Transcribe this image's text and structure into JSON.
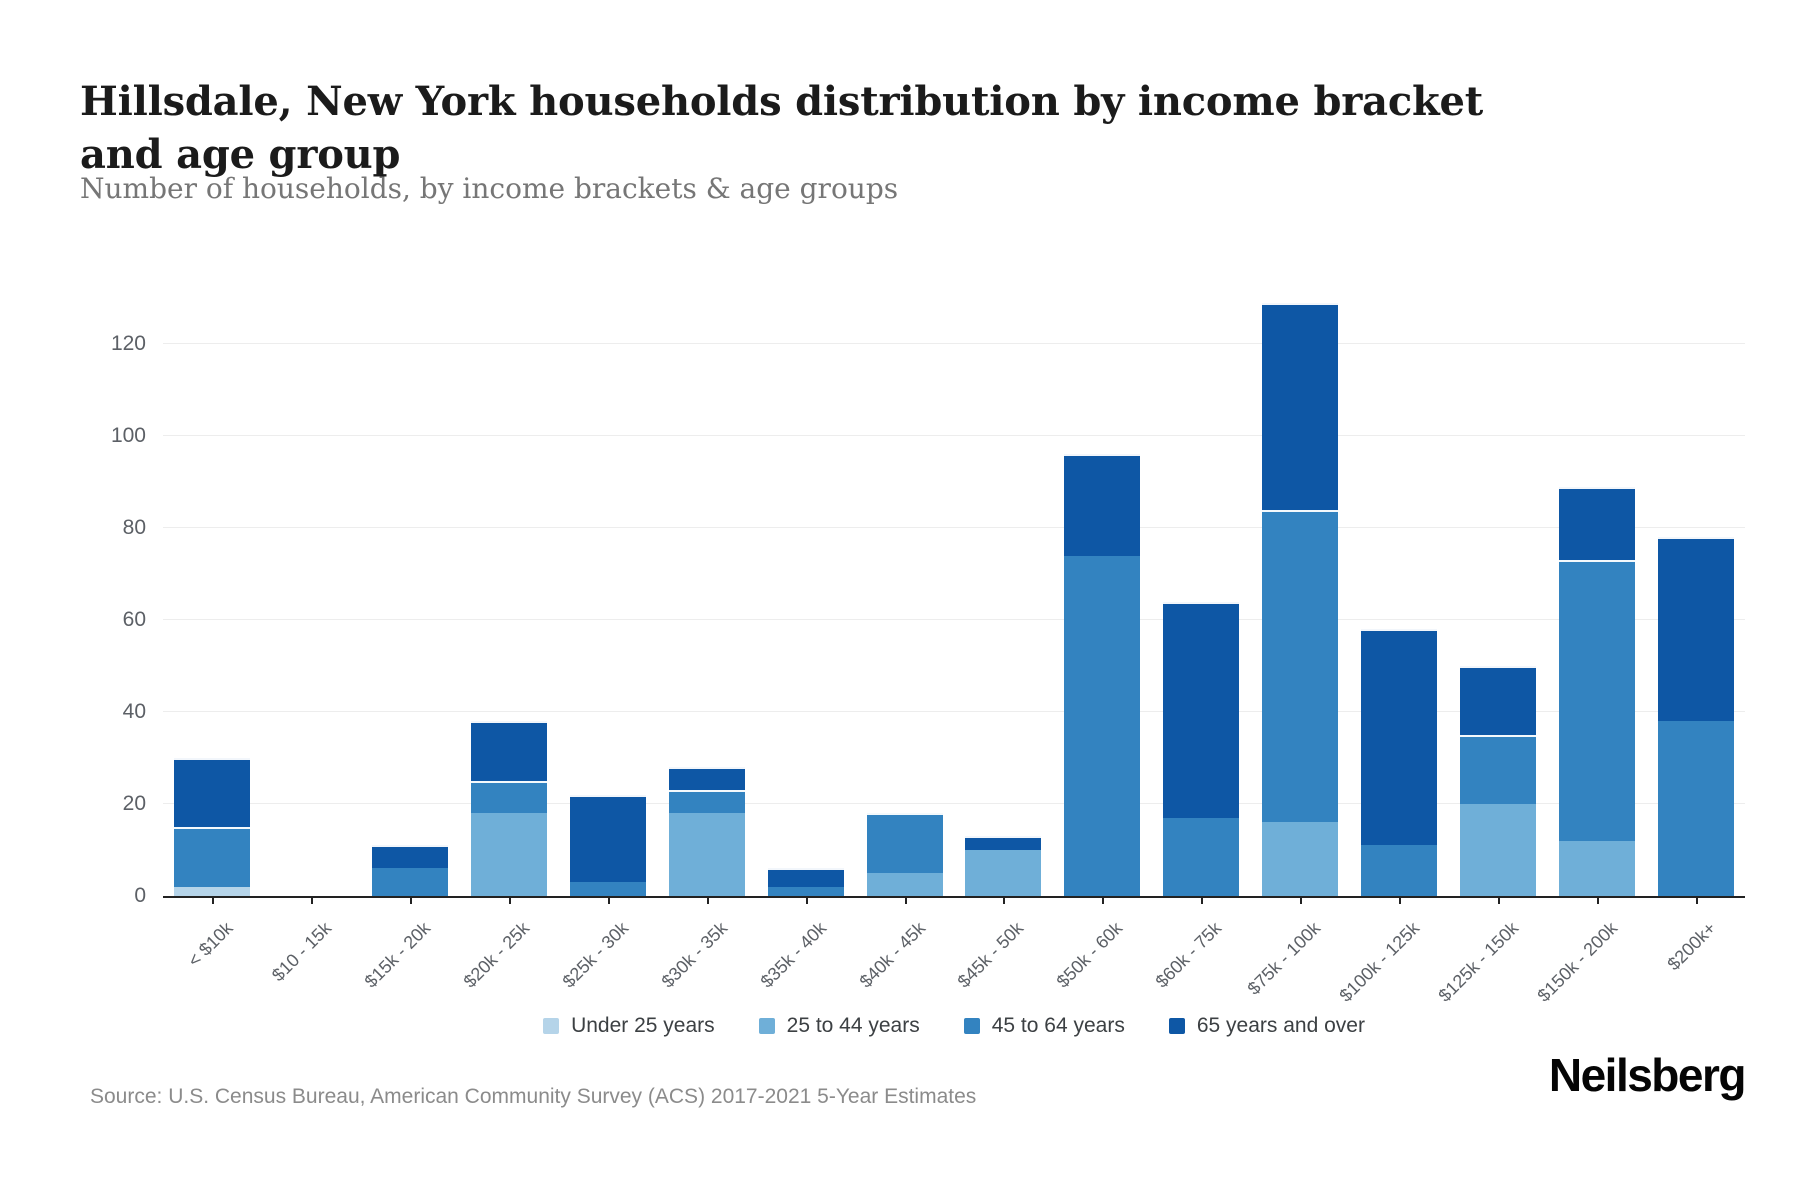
{
  "header": {
    "title": "Hillsdale, New York households distribution by income bracket and age group",
    "subtitle": "Number of households, by income brackets & age groups"
  },
  "chart_data": {
    "type": "bar",
    "stacked": true,
    "title": "Hillsdale, New York households distribution by income bracket and age group",
    "ylabel": "Number of households",
    "categories": [
      "< $10k",
      "$10 - 15k",
      "$15k - 20k",
      "$20k - 25k",
      "$25k - 30k",
      "$30k - 35k",
      "$35k - 40k",
      "$40k - 45k",
      "$45k - 50k",
      "$50k - 60k",
      "$60k - 75k",
      "$75k - 100k",
      "$100k - 125k",
      "$125k - 150k",
      "$150k - 200k",
      "$200k+"
    ],
    "series": [
      {
        "name": "Under 25 years",
        "color": "#b5d4e9",
        "values": [
          2,
          0,
          0,
          0,
          0,
          0,
          0,
          0,
          0,
          0,
          0,
          0,
          0,
          0,
          0,
          0
        ]
      },
      {
        "name": "25 to 44 years",
        "color": "#6fafd8",
        "values": [
          0,
          0,
          0,
          18,
          0,
          18,
          0,
          5,
          10,
          0,
          0,
          16,
          0,
          20,
          12,
          0
        ]
      },
      {
        "name": "45 to 64 years",
        "color": "#3383c0",
        "values": [
          13,
          0,
          6,
          7,
          3,
          5,
          2,
          13,
          0,
          74,
          17,
          68,
          11,
          15,
          61,
          38
        ]
      },
      {
        "name": "65 years and over",
        "color": "#0e57a5",
        "values": [
          15,
          0,
          5,
          13,
          19,
          5,
          4,
          0,
          3,
          22,
          47,
          45,
          47,
          15,
          16,
          40
        ]
      }
    ],
    "totals": [
      30,
      0,
      11,
      38,
      22,
      28,
      6,
      18,
      13,
      96,
      64,
      129,
      58,
      50,
      89,
      78
    ],
    "y_ticks": [
      0,
      20,
      40,
      60,
      80,
      100,
      120
    ],
    "ylim": [
      0,
      131.5
    ],
    "grid": "horizontal",
    "legend_position": "bottom-center",
    "axis_color": "#222222",
    "grid_color": "#ededed",
    "tick_label_color": "#5c6066"
  },
  "footer": {
    "source": "Source: U.S. Census Bureau, American Community Survey (ACS) 2017-2021 5-Year Estimates",
    "brand": "Neilsberg"
  }
}
